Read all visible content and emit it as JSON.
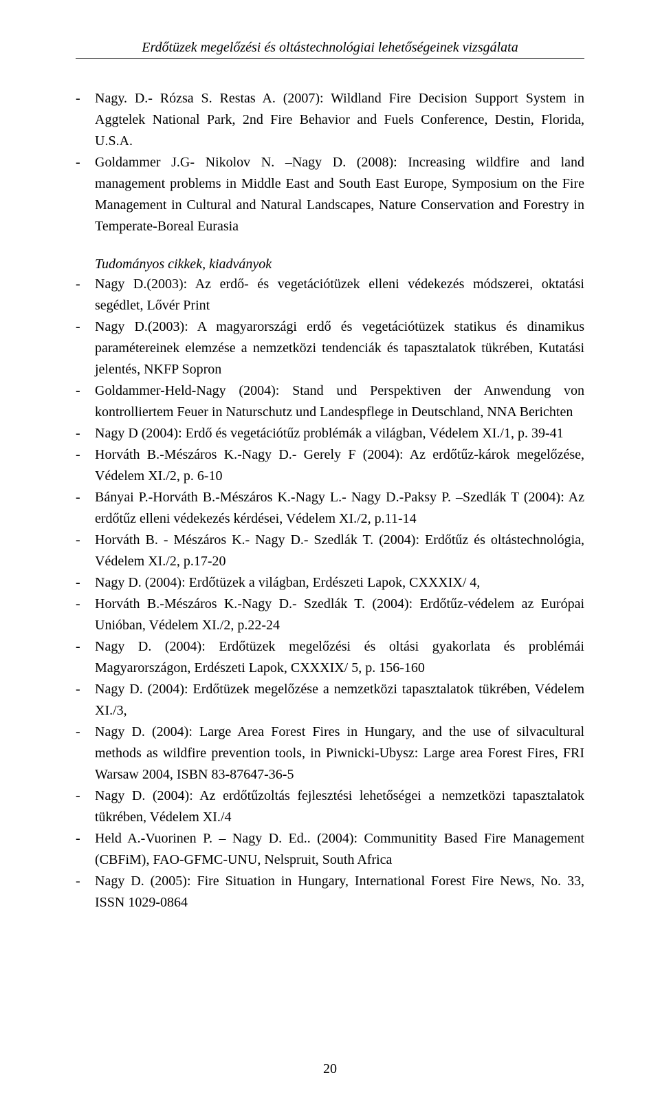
{
  "header_title": "Erdőtüzek megelőzési és oltástechnológiai lehetőségeinek vizsgálata",
  "page_number": "20",
  "sections": {
    "top_entries": [
      "Nagy. D.- Rózsa S. Restas A. (2007): Wildland Fire Decision Support System in Aggtelek National Park, 2nd Fire Behavior and Fuels Conference, Destin, Florida, U.S.A.",
      "Goldammer J.G- Nikolov N. –Nagy D. (2008): Increasing wildfire and land management problems in Middle East and South East Europe, Symposium on the Fire Management in Cultural and Natural Landscapes, Nature Conservation and Forestry in Temperate-Boreal Eurasia"
    ],
    "section_title": "Tudományos cikkek, kiadványok",
    "main_entries": [
      "Nagy D.(2003): Az erdő- és vegetációtüzek elleni védekezés módszerei, oktatási segédlet, Lővér Print",
      "Nagy D.(2003): A magyarországi erdő és vegetációtüzek statikus és dinamikus paramétereinek elemzése a nemzetközi tendenciák és tapasztalatok tükrében, Kutatási jelentés, NKFP Sopron",
      "Goldammer-Held-Nagy (2004): Stand und Perspektiven der Anwendung von kontrolliertem Feuer in Naturschutz und Landespflege in Deutschland, NNA Berichten",
      "Nagy D (2004): Erdő és vegetációtűz problémák a világban, Védelem XI./1, p. 39-41",
      "Horváth B.-Mészáros K.-Nagy D.- Gerely F (2004): Az erdőtűz-károk megelőzése, Védelem XI./2, p. 6-10",
      "Bányai P.-Horváth B.-Mészáros K.-Nagy L.- Nagy D.-Paksy P. –Szedlák T (2004): Az erdőtűz elleni védekezés kérdései, Védelem XI./2, p.11-14",
      "Horváth B. - Mészáros K.- Nagy D.- Szedlák T. (2004): Erdőtűz és oltástechnológia, Védelem XI./2, p.17-20",
      "Nagy D. (2004): Erdőtüzek a világban, Erdészeti Lapok, CXXXIX/ 4,",
      "Horváth B.-Mészáros K.-Nagy D.- Szedlák T. (2004): Erdőtűz-védelem az Európai Unióban, Védelem XI./2, p.22-24",
      "Nagy D. (2004): Erdőtüzek megelőzési és oltási gyakorlata és problémái Magyarországon, Erdészeti Lapok, CXXXIX/ 5, p. 156-160",
      "Nagy D. (2004): Erdőtüzek megelőzése a nemzetközi tapasztalatok tükrében, Védelem XI./3,",
      "Nagy D. (2004): Large Area Forest Fires in Hungary, and the use of silvacultural methods as wildfire prevention tools, in Piwnicki-Ubysz: Large area Forest Fires, FRI Warsaw 2004, ISBN 83-87647-36-5",
      "Nagy D. (2004): Az erdőtűzoltás fejlesztési lehetőségei a nemzetközi tapasztalatok tükrében, Védelem XI./4",
      "Held A.-Vuorinen P. – Nagy D. Ed.. (2004): Communitity Based Fire Management (CBFiM), FAO-GFMC-UNU, Nelspruit, South Africa",
      "Nagy D. (2005): Fire Situation in Hungary, International Forest Fire News, No. 33, ISSN 1029-0864"
    ]
  }
}
